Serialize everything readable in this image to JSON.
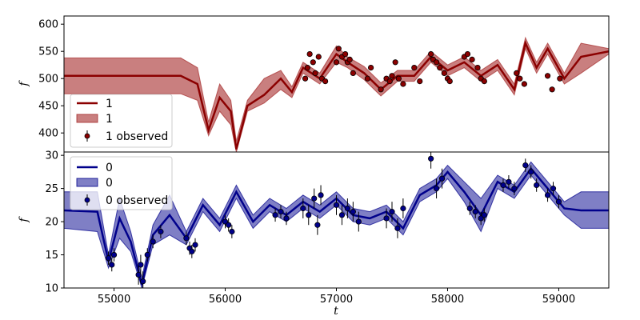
{
  "chart_data": [
    {
      "type": "line",
      "xlabel": "t",
      "ylabel": "f",
      "xlim": [
        54550,
        59450
      ],
      "ylim": [
        365,
        615
      ],
      "xticks": [
        55000,
        56000,
        57000,
        58000,
        59000
      ],
      "yticks": [
        400,
        450,
        500,
        550,
        600
      ],
      "legend": {
        "position": "bottom-left",
        "entries": [
          {
            "label": "1",
            "kind": "line"
          },
          {
            "label": "1",
            "kind": "band"
          },
          {
            "label": "1 observed",
            "kind": "errorbar"
          }
        ]
      },
      "colors": {
        "line": "#8b0000",
        "band": "#a52a2a",
        "marker": "#8b0000"
      },
      "model": {
        "x": [
          54550,
          55600,
          55750,
          55850,
          55950,
          56050,
          56100,
          56200,
          56350,
          56500,
          56600,
          56700,
          56850,
          57000,
          57100,
          57250,
          57400,
          57550,
          57700,
          57850,
          58000,
          58150,
          58300,
          58450,
          58600,
          58700,
          58800,
          58900,
          59050,
          59200,
          59450
        ],
        "y": [
          505,
          505,
          490,
          405,
          465,
          440,
          370,
          450,
          470,
          500,
          475,
          520,
          500,
          545,
          530,
          510,
          480,
          505,
          505,
          540,
          515,
          530,
          505,
          525,
          480,
          565,
          520,
          555,
          500,
          540,
          550
        ],
        "lower": [
          472,
          472,
          460,
          395,
          440,
          415,
          365,
          440,
          455,
          480,
          465,
          510,
          490,
          530,
          520,
          498,
          468,
          495,
          495,
          530,
          505,
          520,
          495,
          515,
          470,
          555,
          510,
          545,
          490,
          510,
          545
        ],
        "upper": [
          538,
          538,
          520,
          420,
          490,
          460,
          385,
          460,
          500,
          515,
          485,
          530,
          510,
          560,
          540,
          522,
          492,
          515,
          515,
          550,
          525,
          540,
          515,
          535,
          490,
          575,
          530,
          565,
          510,
          565,
          555
        ]
      },
      "observed": {
        "x": [
          56720,
          56740,
          56760,
          56790,
          56810,
          56840,
          56870,
          56900,
          57000,
          57020,
          57050,
          57080,
          57100,
          57120,
          57150,
          57280,
          57310,
          57400,
          57450,
          57480,
          57500,
          57530,
          57560,
          57600,
          57700,
          57750,
          57850,
          57870,
          57900,
          57930,
          57970,
          58000,
          58020,
          58150,
          58180,
          58220,
          58270,
          58300,
          58330,
          58620,
          58650,
          58690,
          58900,
          58940,
          59010
        ],
        "y": [
          500,
          520,
          545,
          530,
          510,
          540,
          500,
          495,
          530,
          555,
          540,
          545,
          530,
          535,
          510,
          500,
          520,
          480,
          500,
          495,
          505,
          530,
          500,
          490,
          520,
          495,
          545,
          535,
          530,
          520,
          510,
          500,
          495,
          540,
          545,
          535,
          520,
          500,
          495,
          510,
          500,
          490,
          505,
          480,
          500
        ],
        "err": [
          5,
          5,
          5,
          5,
          5,
          5,
          5,
          5,
          5,
          5,
          5,
          5,
          5,
          5,
          5,
          5,
          5,
          5,
          5,
          5,
          5,
          5,
          5,
          5,
          5,
          5,
          5,
          5,
          5,
          5,
          5,
          5,
          5,
          5,
          5,
          5,
          5,
          5,
          5,
          5,
          5,
          5,
          5,
          5,
          5
        ]
      }
    },
    {
      "type": "line",
      "xlabel": "t",
      "ylabel": "f",
      "xlim": [
        54550,
        59450
      ],
      "ylim": [
        10,
        30.5
      ],
      "xticks": [
        55000,
        56000,
        57000,
        58000,
        59000
      ],
      "yticks": [
        10,
        15,
        20,
        25,
        30
      ],
      "legend": {
        "position": "top-left",
        "entries": [
          {
            "label": "0",
            "kind": "line"
          },
          {
            "label": "0",
            "kind": "band"
          },
          {
            "label": "0 observed",
            "kind": "errorbar"
          }
        ]
      },
      "colors": {
        "line": "#00008b",
        "band": "#00008b",
        "marker": "#00008b"
      },
      "model": {
        "x": [
          54550,
          54850,
          54950,
          55050,
          55150,
          55250,
          55350,
          55500,
          55650,
          55800,
          55950,
          56100,
          56250,
          56400,
          56550,
          56700,
          56850,
          57000,
          57150,
          57300,
          57450,
          57600,
          57750,
          57900,
          58000,
          58150,
          58300,
          58450,
          58600,
          58750,
          58900,
          59050,
          59200,
          59450
        ],
        "y": [
          21.7,
          21.5,
          14.0,
          20.5,
          17.0,
          10.5,
          18.0,
          21.0,
          17.5,
          22.5,
          19.5,
          24.5,
          20.0,
          22.5,
          21.0,
          23.0,
          21.5,
          23.5,
          21.0,
          20.5,
          21.5,
          19.0,
          24.0,
          25.5,
          27.5,
          24.5,
          21.0,
          26.0,
          24.5,
          28.0,
          25.0,
          22.0,
          21.7,
          21.7
        ],
        "lower": [
          19.0,
          18.5,
          13.0,
          17.5,
          15.5,
          10.0,
          16.5,
          18.0,
          16.5,
          21.5,
          18.5,
          23.5,
          19.0,
          21.5,
          20.0,
          22.0,
          20.5,
          22.5,
          20.0,
          19.5,
          20.5,
          18.0,
          23.0,
          24.5,
          26.5,
          23.0,
          18.5,
          25.0,
          23.5,
          27.0,
          24.0,
          21.0,
          19.0,
          19.0
        ],
        "upper": [
          24.5,
          24.5,
          15.0,
          23.5,
          18.5,
          11.5,
          19.5,
          24.0,
          18.5,
          23.5,
          20.5,
          25.5,
          21.0,
          23.5,
          22.0,
          24.0,
          22.5,
          24.5,
          22.0,
          21.5,
          22.5,
          20.0,
          25.0,
          26.5,
          28.5,
          26.0,
          23.5,
          27.0,
          25.5,
          29.0,
          26.0,
          23.0,
          24.5,
          24.5
        ]
      },
      "observed": {
        "x": [
          54950,
          54980,
          55000,
          55220,
          55240,
          55260,
          55300,
          55350,
          55420,
          55650,
          55680,
          55700,
          55730,
          56000,
          56030,
          56060,
          56450,
          56500,
          56550,
          56700,
          56750,
          56800,
          56830,
          56860,
          57000,
          57050,
          57100,
          57150,
          57200,
          57450,
          57500,
          57550,
          57600,
          57850,
          57900,
          57950,
          58200,
          58250,
          58300,
          58330,
          58500,
          58550,
          58600,
          58700,
          58750,
          58800,
          58900,
          58950,
          59000
        ],
        "y": [
          14.5,
          13.5,
          15.0,
          12.0,
          13.5,
          11.0,
          15.0,
          17.0,
          18.5,
          17.5,
          16.0,
          15.5,
          16.5,
          20.0,
          19.5,
          18.5,
          21.0,
          21.5,
          20.5,
          22.0,
          21.0,
          23.5,
          19.5,
          24.0,
          22.5,
          21.0,
          22.0,
          21.5,
          20.0,
          20.5,
          21.5,
          19.0,
          22.0,
          29.5,
          25.0,
          26.5,
          22.0,
          21.5,
          20.5,
          21.0,
          25.5,
          26.0,
          25.0,
          28.5,
          27.5,
          25.5,
          24.0,
          25.0,
          23.0
        ],
        "err": [
          1,
          1,
          1,
          1.5,
          1.5,
          1.5,
          1,
          1,
          1,
          1,
          1,
          1,
          1,
          1,
          1,
          1,
          1,
          1,
          1,
          1.5,
          1.5,
          1.5,
          1.5,
          1.5,
          1.5,
          1.5,
          1.5,
          1.5,
          1.5,
          1.5,
          1.5,
          1.5,
          1.5,
          1.5,
          1.5,
          1.5,
          1,
          1,
          1,
          1,
          1,
          1,
          1,
          1,
          1,
          1,
          1,
          1,
          1
        ]
      }
    }
  ]
}
